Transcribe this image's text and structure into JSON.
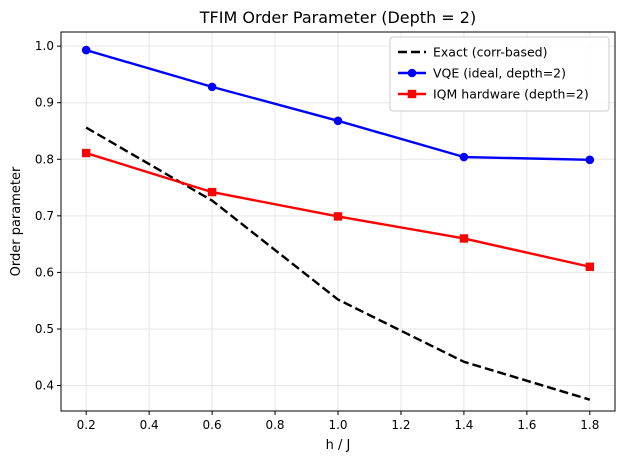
{
  "chart_data": {
    "type": "line",
    "title": "TFIM Order Parameter (Depth = 2)",
    "xlabel": "h / J",
    "ylabel": "Order parameter",
    "xlim": [
      0.12,
      1.88
    ],
    "ylim": [
      0.355,
      1.025
    ],
    "xticks": [
      0.2,
      0.4,
      0.6,
      0.8,
      1.0,
      1.2,
      1.4,
      1.6,
      1.8
    ],
    "xtick_labels": [
      "0.2",
      "0.4",
      "0.6",
      "0.8",
      "1.0",
      "1.2",
      "1.4",
      "1.6",
      "1.8"
    ],
    "yticks": [
      0.4,
      0.5,
      0.6,
      0.7,
      0.8,
      0.9,
      1.0
    ],
    "ytick_labels": [
      "0.4",
      "0.5",
      "0.6",
      "0.7",
      "0.8",
      "0.9",
      "1.0"
    ],
    "grid": true,
    "legend_position": "top-right",
    "series": [
      {
        "name": "Exact (corr-based)",
        "color": "#000000",
        "line_style": "dashed",
        "marker": "none",
        "x": [
          0.2,
          0.6,
          1.0,
          1.4,
          1.8
        ],
        "y": [
          0.856,
          0.727,
          0.552,
          0.442,
          0.375
        ]
      },
      {
        "name": "VQE (ideal, depth=2)",
        "color": "#0000ff",
        "line_style": "solid",
        "marker": "circle",
        "x": [
          0.2,
          0.6,
          1.0,
          1.4,
          1.8
        ],
        "y": [
          0.993,
          0.928,
          0.868,
          0.804,
          0.799
        ]
      },
      {
        "name": "IQM hardware (depth=2)",
        "color": "#ff0000",
        "line_style": "solid",
        "marker": "square",
        "x": [
          0.2,
          0.6,
          1.0,
          1.4,
          1.8
        ],
        "y": [
          0.811,
          0.742,
          0.699,
          0.66,
          0.61
        ]
      }
    ]
  }
}
